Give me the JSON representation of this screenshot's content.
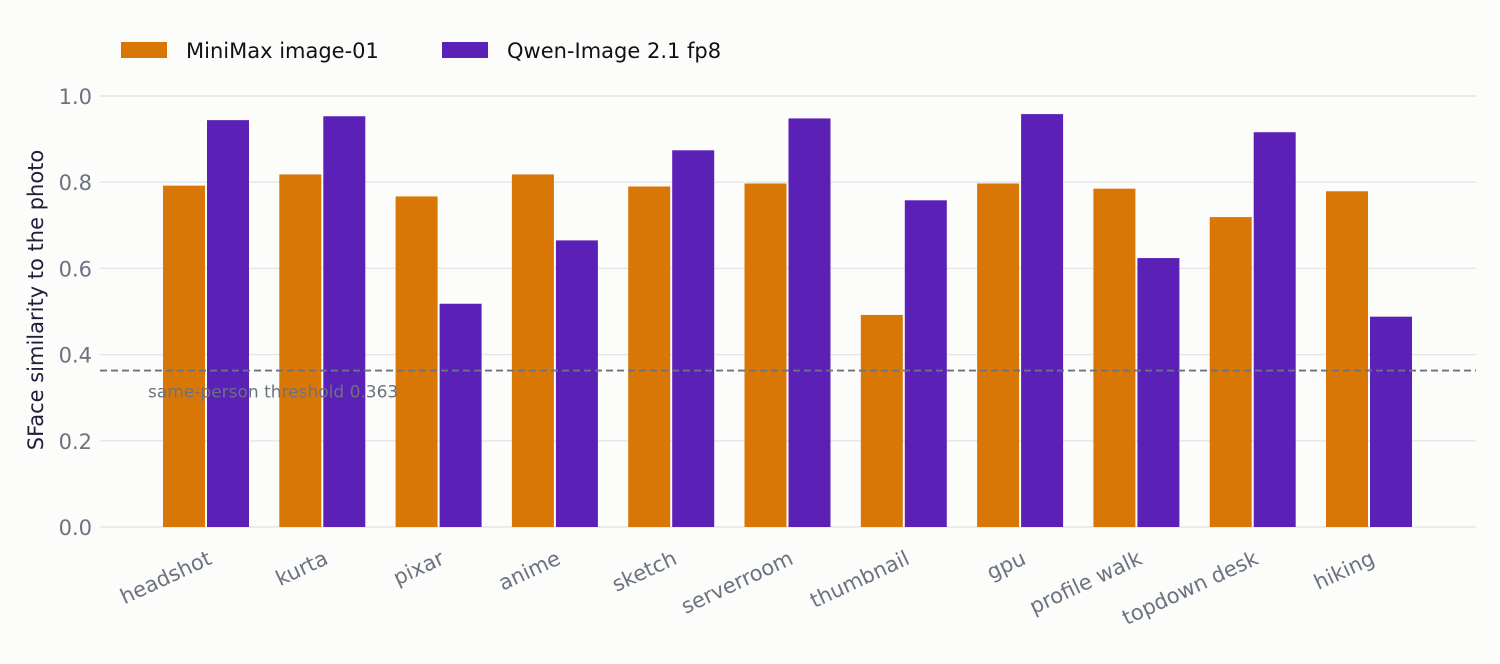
{
  "chart_data": {
    "type": "bar",
    "title": "",
    "xlabel": "",
    "ylabel": "SFace similarity to the photo",
    "ylim": [
      0,
      1.0
    ],
    "yticks": [
      "0.0",
      "0.2",
      "0.4",
      "0.6",
      "0.8",
      "1.0"
    ],
    "grid": "horizontal",
    "legend_position": "top-left",
    "categories": [
      "headshot",
      "kurta",
      "pixar",
      "anime",
      "sketch",
      "serverroom",
      "thumbnail",
      "gpu",
      "profile walk",
      "topdown desk",
      "hiking"
    ],
    "series": [
      {
        "name": "MiniMax image-01",
        "color": "#d97706",
        "values": [
          0.792,
          0.818,
          0.767,
          0.818,
          0.79,
          0.797,
          0.492,
          0.797,
          0.785,
          0.719,
          0.779
        ]
      },
      {
        "name": "Qwen-Image 2.1 fp8",
        "color": "#5b21b6",
        "values": [
          0.944,
          0.953,
          0.518,
          0.665,
          0.874,
          0.948,
          0.758,
          0.958,
          0.624,
          0.916,
          0.488
        ]
      }
    ],
    "threshold": {
      "value": 0.363,
      "label": "same-person threshold 0.363",
      "color": "#6b7280"
    }
  }
}
